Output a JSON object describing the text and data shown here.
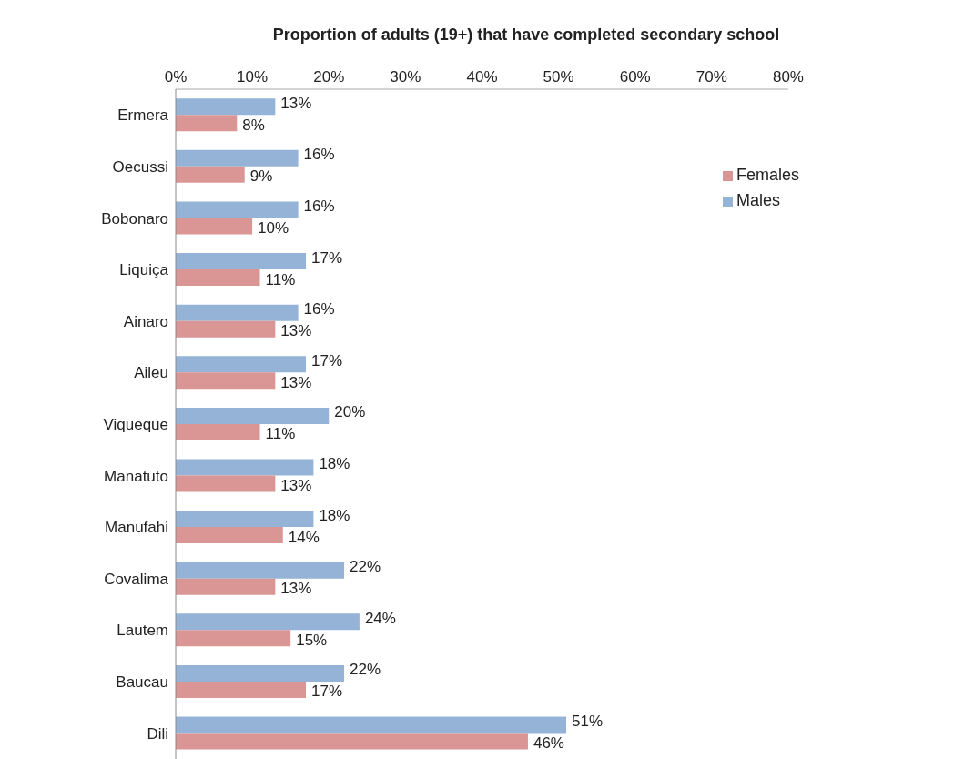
{
  "chart_data": {
    "type": "bar",
    "orientation": "horizontal",
    "title": "Proportion of adults (19+) that have completed secondary school",
    "categories": [
      "Ermera",
      "Oecussi",
      "Bobonaro",
      "Liquiça",
      "Ainaro",
      "Aileu",
      "Viqueque",
      "Manatuto",
      "Manufahi",
      "Covalima",
      "Lautem",
      "Baucau",
      "Dili"
    ],
    "series": [
      {
        "name": "Males",
        "color": "#95b3d7",
        "values": [
          13,
          16,
          16,
          17,
          16,
          17,
          20,
          18,
          18,
          22,
          24,
          22,
          51
        ],
        "value_labels": [
          "13%",
          "16%",
          "16%",
          "17%",
          "16%",
          "17%",
          "20%",
          "18%",
          "18%",
          "22%",
          "24%",
          "22%",
          "51%"
        ]
      },
      {
        "name": "Females",
        "color": "#d99694",
        "values": [
          8,
          9,
          10,
          11,
          13,
          13,
          11,
          13,
          14,
          13,
          15,
          17,
          46
        ],
        "value_labels": [
          "8%",
          "9%",
          "10%",
          "11%",
          "13%",
          "13%",
          "11%",
          "13%",
          "14%",
          "13%",
          "15%",
          "17%",
          "46%"
        ]
      }
    ],
    "xlim": [
      0,
      80
    ],
    "xticks": [
      {
        "value": 0,
        "label": "0%"
      },
      {
        "value": 10,
        "label": "10%"
      },
      {
        "value": 20,
        "label": "20%"
      },
      {
        "value": 30,
        "label": "30%"
      },
      {
        "value": 40,
        "label": "40%"
      },
      {
        "value": 50,
        "label": "50%"
      },
      {
        "value": 60,
        "label": "60%"
      },
      {
        "value": 70,
        "label": "70%"
      },
      {
        "value": 80,
        "label": "80%"
      }
    ],
    "legend": "right",
    "grid": false
  }
}
